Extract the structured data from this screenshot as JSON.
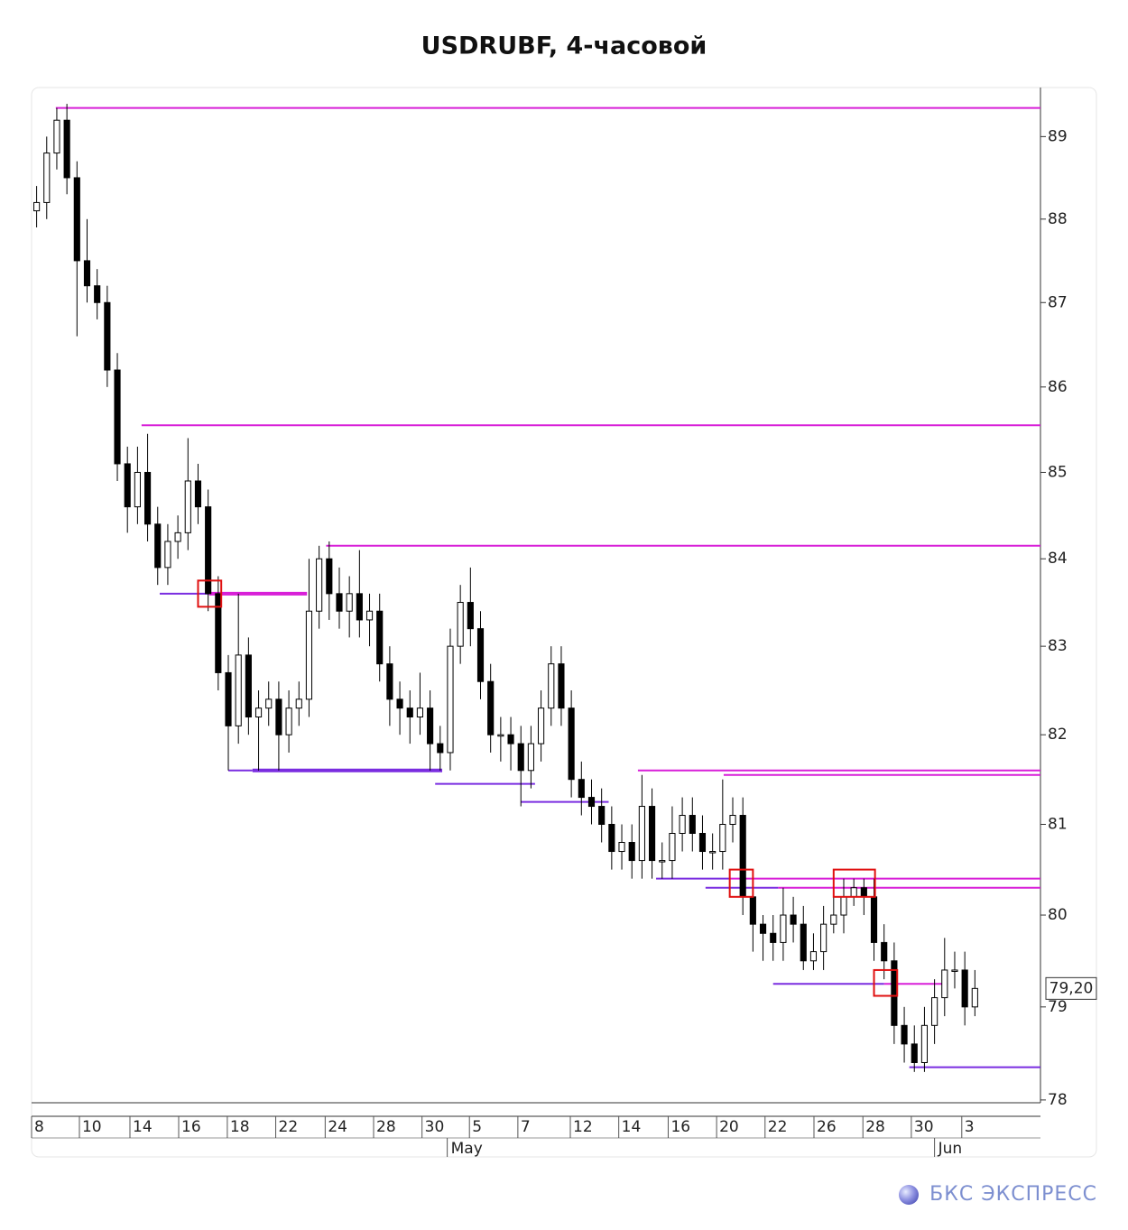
{
  "chart_data": {
    "type": "candlestick",
    "title": "USDRUBF, 4-часовой",
    "log_scale": true,
    "ylim": [
      77.97,
      89.6
    ],
    "yticks": [
      78,
      79,
      80,
      81,
      82,
      83,
      84,
      85,
      86,
      87,
      88,
      89
    ],
    "xlim": [
      -0.5,
      99.5
    ],
    "xticks": [
      {
        "value": -0.5,
        "label": "8"
      },
      {
        "value": 4.24,
        "label": "10"
      },
      {
        "value": 9.25,
        "label": "14"
      },
      {
        "value": 14.08,
        "label": "16"
      },
      {
        "value": 18.9,
        "label": "18"
      },
      {
        "value": 23.7,
        "label": "22"
      },
      {
        "value": 28.6,
        "label": "24"
      },
      {
        "value": 33.4,
        "label": "28"
      },
      {
        "value": 38.2,
        "label": "30"
      },
      {
        "value": 42.9,
        "label": "5"
      },
      {
        "value": 47.7,
        "label": "7"
      },
      {
        "value": 52.9,
        "label": "12"
      },
      {
        "value": 57.7,
        "label": "14"
      },
      {
        "value": 62.6,
        "label": "16"
      },
      {
        "value": 67.4,
        "label": "20"
      },
      {
        "value": 72.2,
        "label": "22"
      },
      {
        "value": 77.05,
        "label": "26"
      },
      {
        "value": 81.9,
        "label": "28"
      },
      {
        "value": 86.7,
        "label": "30"
      },
      {
        "value": 91.7,
        "label": "3"
      }
    ],
    "month_ticks": [
      {
        "value": 40.7,
        "label": "May"
      },
      {
        "value": 89.0,
        "label": "Jun"
      }
    ],
    "open": [
      88.1,
      88.2,
      88.8,
      89.2,
      88.5,
      87.5,
      87.2,
      87.0,
      86.2,
      85.1,
      84.6,
      85.0,
      84.4,
      83.9,
      84.2,
      84.3,
      84.9,
      84.6,
      83.6,
      82.7,
      82.1,
      82.9,
      82.2,
      82.3,
      82.4,
      82.0,
      82.3,
      82.4,
      83.4,
      84.0,
      83.6,
      83.4,
      83.6,
      83.3,
      83.4,
      82.8,
      82.4,
      82.3,
      82.2,
      82.3,
      81.9,
      81.8,
      83.0,
      83.5,
      83.2,
      82.6,
      82.0,
      82.0,
      81.9,
      81.6,
      81.9,
      82.3,
      82.8,
      82.3,
      81.5,
      81.3,
      81.2,
      81.0,
      80.7,
      80.8,
      80.6,
      81.2,
      80.6,
      80.6,
      80.9,
      81.1,
      80.9,
      80.7,
      80.7,
      81.0,
      81.1,
      80.2,
      79.9,
      79.8,
      79.7,
      80.0,
      79.9,
      79.5,
      79.6,
      79.9,
      80.0,
      80.2,
      80.3,
      80.2,
      79.7,
      79.5,
      78.8,
      78.6,
      78.4,
      78.8,
      79.1,
      79.4,
      79.4,
      79.0
    ],
    "high": [
      88.4,
      89.0,
      89.35,
      89.4,
      88.7,
      88.0,
      87.4,
      87.2,
      86.4,
      85.3,
      85.3,
      85.45,
      84.6,
      84.4,
      84.5,
      85.4,
      85.1,
      84.8,
      83.8,
      82.9,
      83.6,
      83.1,
      82.5,
      82.6,
      82.6,
      82.5,
      82.6,
      84.0,
      84.15,
      84.2,
      83.9,
      83.8,
      84.1,
      83.6,
      83.6,
      83.0,
      82.6,
      82.5,
      82.7,
      82.5,
      82.1,
      83.2,
      83.7,
      83.9,
      83.4,
      82.8,
      82.2,
      82.2,
      82.1,
      82.1,
      82.5,
      83.0,
      83.0,
      82.5,
      81.7,
      81.5,
      81.4,
      81.2,
      81.0,
      81.0,
      81.55,
      81.4,
      80.8,
      81.2,
      81.3,
      81.3,
      81.1,
      80.9,
      81.5,
      81.3,
      81.3,
      80.4,
      80.0,
      80.0,
      80.3,
      80.2,
      80.1,
      79.8,
      80.1,
      80.2,
      80.4,
      80.4,
      80.4,
      80.4,
      79.9,
      79.7,
      79.0,
      78.8,
      79.0,
      79.3,
      79.75,
      79.6,
      79.6,
      79.4
    ],
    "low": [
      87.9,
      88.0,
      88.6,
      88.3,
      86.6,
      87.0,
      86.8,
      86.0,
      84.9,
      84.3,
      84.4,
      84.2,
      83.7,
      83.7,
      84.0,
      84.1,
      84.4,
      83.4,
      82.5,
      81.6,
      81.9,
      82.0,
      81.6,
      82.1,
      81.6,
      81.8,
      82.1,
      82.2,
      83.2,
      83.3,
      83.2,
      83.1,
      83.1,
      83.0,
      82.6,
      82.1,
      82.0,
      81.9,
      82.0,
      81.6,
      81.6,
      81.6,
      82.8,
      83.0,
      82.4,
      81.8,
      81.7,
      81.6,
      81.2,
      81.4,
      81.7,
      82.1,
      82.1,
      81.3,
      81.1,
      81.0,
      80.8,
      80.5,
      80.5,
      80.4,
      80.4,
      80.4,
      80.4,
      80.4,
      80.7,
      80.7,
      80.5,
      80.5,
      80.5,
      80.8,
      80.0,
      79.6,
      79.5,
      79.5,
      79.5,
      79.7,
      79.4,
      79.4,
      79.4,
      79.8,
      79.8,
      80.1,
      80.0,
      79.5,
      79.3,
      78.6,
      78.4,
      78.3,
      78.3,
      78.6,
      78.9,
      79.2,
      78.8,
      78.9
    ],
    "close": [
      88.2,
      88.8,
      89.2,
      88.5,
      87.5,
      87.2,
      87.0,
      86.2,
      85.1,
      84.6,
      85.0,
      84.4,
      83.9,
      84.2,
      84.3,
      84.9,
      84.6,
      83.6,
      82.7,
      82.1,
      82.9,
      82.2,
      82.3,
      82.4,
      82.0,
      82.3,
      82.4,
      83.4,
      84.0,
      83.6,
      83.4,
      83.6,
      83.3,
      83.4,
      82.8,
      82.4,
      82.3,
      82.2,
      82.3,
      81.9,
      81.8,
      83.0,
      83.5,
      83.2,
      82.6,
      82.0,
      82.0,
      81.9,
      81.6,
      81.9,
      82.3,
      82.8,
      82.3,
      81.5,
      81.3,
      81.2,
      81.0,
      80.7,
      80.8,
      80.6,
      81.2,
      80.6,
      80.6,
      80.9,
      81.1,
      80.9,
      80.7,
      80.7,
      81.0,
      81.1,
      80.2,
      79.9,
      79.8,
      79.7,
      80.0,
      79.9,
      79.5,
      79.6,
      79.9,
      80.0,
      80.2,
      80.3,
      80.2,
      79.7,
      79.5,
      78.8,
      78.6,
      78.4,
      78.8,
      79.1,
      79.4,
      79.4,
      79.0,
      79.2
    ],
    "levels": [
      {
        "value": 89.35,
        "x0": 1.9,
        "x1": 99.5,
        "color": "#d81fd8"
      },
      {
        "value": 85.55,
        "x0": 10.4,
        "x1": 99.5,
        "color": "#d81fd8"
      },
      {
        "value": 84.15,
        "x0": 28.7,
        "x1": 99.5,
        "color": "#d81fd8"
      },
      {
        "value": 81.6,
        "x0": 59.6,
        "x1": 99.5,
        "color": "#d81fd8"
      },
      {
        "value": 81.55,
        "x0": 68.1,
        "x1": 99.5,
        "color": "#d81fd8"
      },
      {
        "value": 80.4,
        "x0": 68.6,
        "x1": 99.5,
        "color": "#d81fd8"
      },
      {
        "value": 80.3,
        "x0": 73.5,
        "x1": 99.5,
        "color": "#d81fd8"
      },
      {
        "value": 83.6,
        "x0": 17.1,
        "x1": 26.8,
        "color": "#d81fd8",
        "bold": true
      },
      {
        "value": 79.25,
        "x0": 84.0,
        "x1": 90.3,
        "color": "#d81fd8"
      },
      {
        "value": 83.6,
        "x0": 12.2,
        "x1": 17.1,
        "color": "#7a2de0"
      },
      {
        "value": 81.6,
        "x0": 19.0,
        "x1": 21.4,
        "color": "#7a2de0"
      },
      {
        "value": 81.6,
        "x0": 21.4,
        "x1": 40.2,
        "color": "#7a2de0",
        "bold": true
      },
      {
        "value": 81.45,
        "x0": 39.5,
        "x1": 49.4,
        "color": "#7a2de0"
      },
      {
        "value": 81.25,
        "x0": 48.0,
        "x1": 56.7,
        "color": "#7a2de0"
      },
      {
        "value": 80.4,
        "x0": 61.4,
        "x1": 68.6,
        "color": "#7a2de0"
      },
      {
        "value": 80.3,
        "x0": 66.3,
        "x1": 73.5,
        "color": "#7a2de0"
      },
      {
        "value": 79.25,
        "x0": 73.0,
        "x1": 84.0,
        "color": "#7a2de0"
      },
      {
        "value": 78.35,
        "x0": 86.5,
        "x1": 99.5,
        "color": "#7a2de0"
      }
    ],
    "boxes": [
      {
        "x0": 16.0,
        "x1": 18.3,
        "y0": 83.45,
        "y1": 83.75
      },
      {
        "x0": 68.7,
        "x1": 71.0,
        "y0": 80.2,
        "y1": 80.5
      },
      {
        "x0": 79.0,
        "x1": 83.1,
        "y0": 80.2,
        "y1": 80.5
      },
      {
        "x0": 83.0,
        "x1": 85.3,
        "y0": 79.12,
        "y1": 79.4
      }
    ],
    "last_price": 79.2,
    "last_price_label": "79,20"
  },
  "footer": {
    "brand": "БКС ЭКСПРЕСС"
  }
}
